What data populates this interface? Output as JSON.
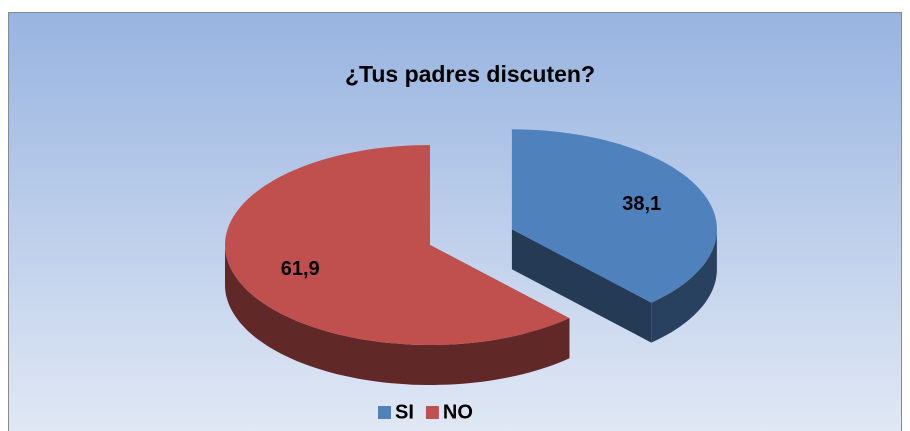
{
  "chart_data": {
    "type": "pie",
    "title": "¿Tus padres discuten?",
    "categories": [
      "SI",
      "NO"
    ],
    "values": [
      38.1,
      61.9
    ],
    "value_labels": [
      "38,1",
      "61,9"
    ],
    "colors": [
      "#4f81bd",
      "#c0504d"
    ],
    "legend": "bottom"
  }
}
